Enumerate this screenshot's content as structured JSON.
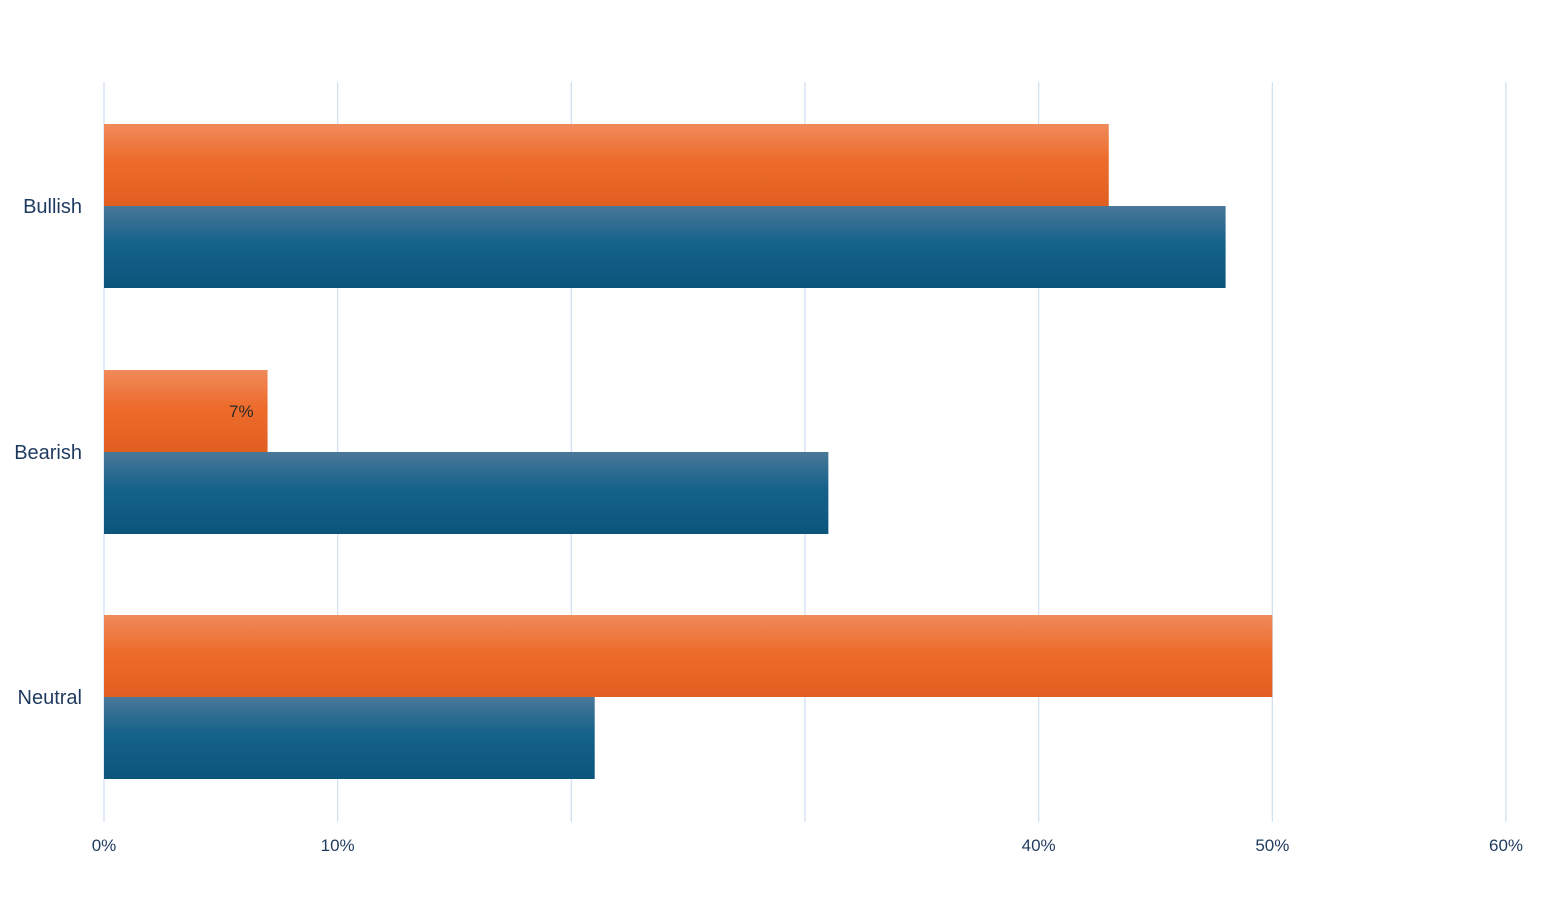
{
  "chart_data": {
    "type": "bar",
    "orientation": "horizontal",
    "categories": [
      "Bullish",
      "Bearish",
      "Neutral"
    ],
    "series": [
      {
        "color": "#e8662a",
        "values": [
          43,
          7,
          50
        ]
      },
      {
        "color": "#0f5a80",
        "values": [
          48,
          31,
          21
        ]
      }
    ],
    "data_labels": [
      {
        "category": "Bearish",
        "series_index": 0,
        "text": "7%"
      }
    ],
    "x_ticks": [
      {
        "value": 0,
        "label": "0%"
      },
      {
        "value": 10,
        "label": "10%"
      },
      {
        "value": 20,
        "label": ""
      },
      {
        "value": 30,
        "label": ""
      },
      {
        "value": 40,
        "label": "40%"
      },
      {
        "value": 50,
        "label": "50%"
      },
      {
        "value": 60,
        "label": "60%"
      }
    ],
    "xlim": [
      0,
      60
    ],
    "grid": true,
    "legend": "none",
    "gridline_color": "#cfe0f3"
  }
}
